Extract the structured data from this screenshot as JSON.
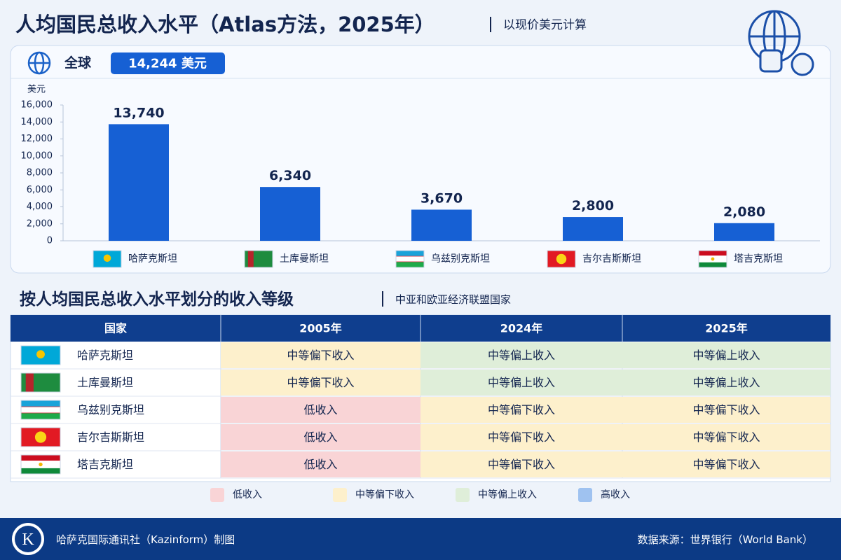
{
  "header": {
    "title": "人均国民总收入水平（Atlas方法，2025年）",
    "subtitle": "以现价美元计算"
  },
  "global": {
    "label": "全球",
    "value": "14,244 美元"
  },
  "chart_data": {
    "type": "bar",
    "y_label": "美元",
    "categories": [
      "哈萨克斯坦",
      "土库曼斯坦",
      "乌兹别克斯坦",
      "吉尔吉斯斯坦",
      "塔吉克斯坦"
    ],
    "values": [
      13740,
      6340,
      3670,
      2800,
      2080
    ],
    "value_labels": [
      "13,740",
      "6,340",
      "3,670",
      "2,800",
      "2,080"
    ],
    "color": "#1660d4",
    "ylim": [
      0,
      16000
    ],
    "yticks": [
      0,
      {
        "value": 2000,
        "label": "2,000"
      },
      {
        "value": 4000,
        "label": "4,000"
      },
      {
        "value": 6000,
        "label": "6,000"
      },
      {
        "value": 8000,
        "label": "8,000"
      },
      {
        "value": 10000,
        "label": "10,000"
      },
      {
        "value": 12000,
        "label": "12,000"
      },
      {
        "value": 14000,
        "label": "14,000"
      },
      {
        "value": 16000,
        "label": "16,000"
      }
    ],
    "grid": false
  },
  "section": {
    "title": "按人均国民总收入水平划分的收入等级",
    "subtitle": "中亚和欧亚经济联盟国家"
  },
  "table": {
    "header": [
      "国家",
      "2005年",
      "2024年",
      "2025年"
    ],
    "rows": [
      [
        "哈萨克斯坦",
        "中等偏下收入",
        "中等偏上收入",
        "中等偏上收入"
      ],
      [
        "土库曼斯坦",
        "中等偏下收入",
        "中等偏上收入",
        "中等偏上收入"
      ],
      [
        "乌兹别克斯坦",
        "低收入",
        "中等偏下收入",
        "中等偏下收入"
      ],
      [
        "吉尔吉斯斯坦",
        "低收入",
        "中等偏下收入",
        "中等偏下收入"
      ],
      [
        "塔吉克斯坦",
        "低收入",
        "中等偏下收入",
        "中等偏下收入"
      ]
    ]
  },
  "legend": [
    {
      "label": "低收入",
      "color": "#f9d4d6"
    },
    {
      "label": "中等偏下收入",
      "color": "#fdf0cc"
    },
    {
      "label": "中等偏上收入",
      "color": "#dfeed9"
    },
    {
      "label": "高收入",
      "color": "#9fc2f0"
    }
  ],
  "footer": {
    "credit": "哈萨克国际通讯社（Kazinform）制图",
    "source": "数据来源：世界银行（World Bank）"
  }
}
